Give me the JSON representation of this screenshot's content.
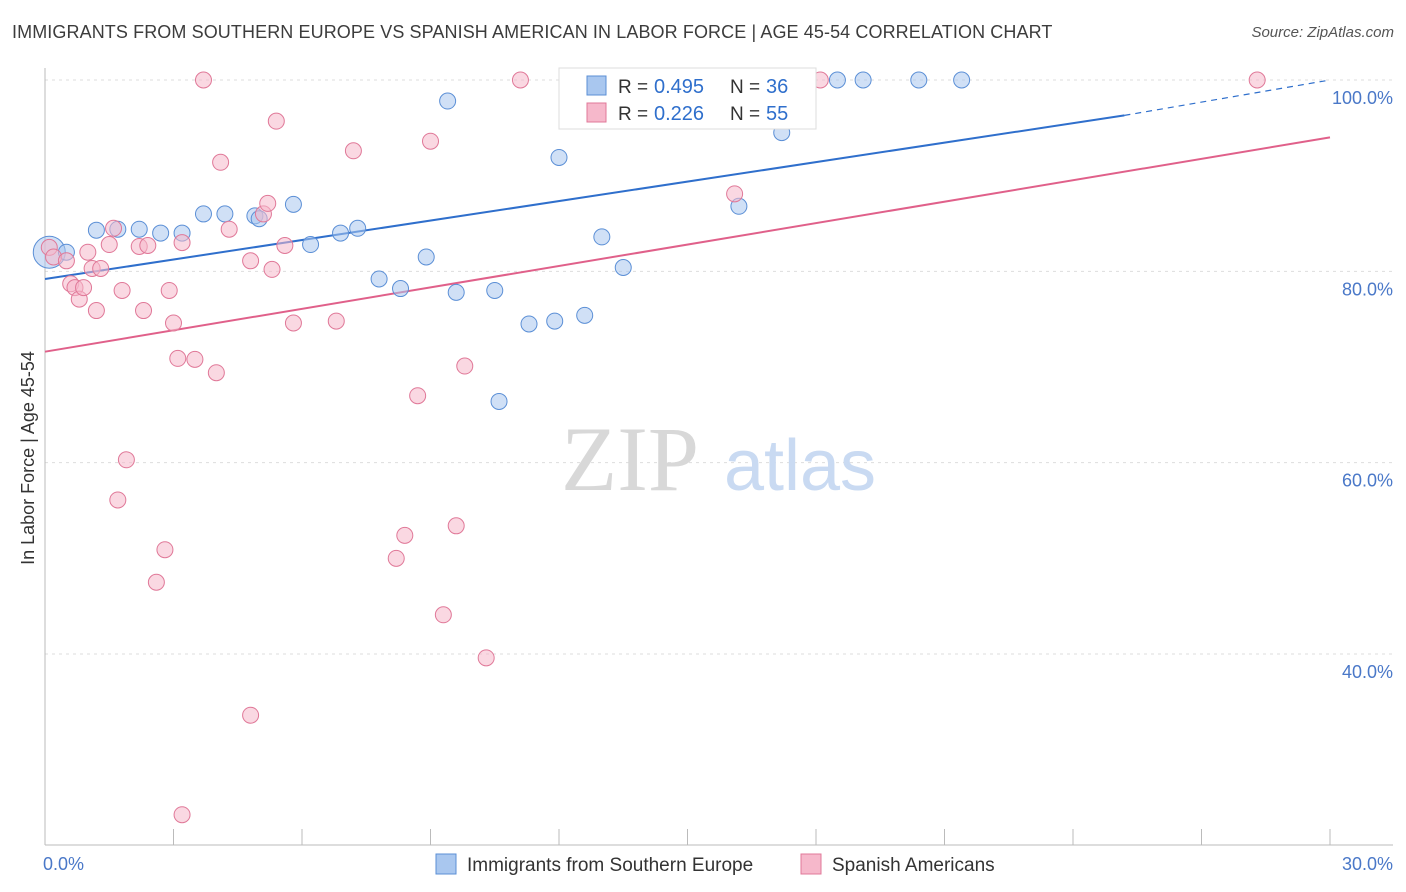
{
  "title": "IMMIGRANTS FROM SOUTHERN EUROPE VS SPANISH AMERICAN IN LABOR FORCE | AGE 45-54 CORRELATION CHART",
  "source": "Source: ZipAtlas.com",
  "watermark": {
    "zip": "ZIP",
    "atlas": "atlas"
  },
  "legend_box": {
    "r_label": "R =",
    "n_label": "N =",
    "rows": [
      {
        "r": "0.495",
        "n": "36"
      },
      {
        "r": "0.226",
        "n": "55"
      }
    ]
  },
  "colors": {
    "blue_fill": "#a9c7ef",
    "blue_stroke": "#5b8fd6",
    "blue_line": "#2f6fcc",
    "pink_fill": "#f6b8cb",
    "pink_stroke": "#e07898",
    "pink_line": "#e0608a",
    "grid": "#dddddd",
    "tick_text": "#4a78c8"
  },
  "chart_data": {
    "type": "scatter",
    "xlabel": "",
    "ylabel": "In Labor Force | Age 45-54",
    "xlim": [
      0,
      30
    ],
    "ylim": [
      20,
      104
    ],
    "x_tick_labels": [
      {
        "value": 0,
        "label": "0.0%"
      },
      {
        "value": 30,
        "label": "30.0%"
      }
    ],
    "y_tick_labels": [
      {
        "value": 100,
        "label": "100.0%"
      },
      {
        "value": 80,
        "label": "80.0%"
      },
      {
        "value": 60,
        "label": "60.0%"
      },
      {
        "value": 40,
        "label": "40.0%"
      }
    ],
    "grid": true,
    "legend_placement": "top-center and bottom",
    "series": [
      {
        "name": "Immigrants from Southern Europe",
        "color": "blue",
        "r": 0.495,
        "n": 36,
        "trend": {
          "x0": 0,
          "y0": 79.2,
          "x1": 25.2,
          "y1": 96.3,
          "dash_x1": 30,
          "dash_y1": 100.0
        },
        "points": [
          [
            0.1,
            82.0
          ],
          [
            1.2,
            84.3
          ],
          [
            1.7,
            84.4
          ],
          [
            2.2,
            84.4
          ],
          [
            2.7,
            84.0
          ],
          [
            3.2,
            84.0
          ],
          [
            3.7,
            86.0
          ],
          [
            4.2,
            86.0
          ],
          [
            4.9,
            85.8
          ],
          [
            5.0,
            85.5
          ],
          [
            5.8,
            87.0
          ],
          [
            6.2,
            82.8
          ],
          [
            6.9,
            84.0
          ],
          [
            7.3,
            84.5
          ],
          [
            7.8,
            79.2
          ],
          [
            8.3,
            78.2
          ],
          [
            8.9,
            81.5
          ],
          [
            9.4,
            97.8
          ],
          [
            9.6,
            77.8
          ],
          [
            10.5,
            78.0
          ],
          [
            10.6,
            66.4
          ],
          [
            11.3,
            74.5
          ],
          [
            11.9,
            74.8
          ],
          [
            12.0,
            91.9
          ],
          [
            12.6,
            75.4
          ],
          [
            13.0,
            83.6
          ],
          [
            13.5,
            80.4
          ],
          [
            14.1,
            100.0
          ],
          [
            15.0,
            100.0
          ],
          [
            16.2,
            86.8
          ],
          [
            17.2,
            94.5
          ],
          [
            18.5,
            100.0
          ],
          [
            19.1,
            100.0
          ],
          [
            20.4,
            100.0
          ],
          [
            21.4,
            100.0
          ],
          [
            0.5,
            82.0
          ]
        ]
      },
      {
        "name": "Spanish Americans",
        "color": "pink",
        "r": 0.226,
        "n": 55,
        "trend": {
          "x0": 0,
          "y0": 71.6,
          "x1": 30,
          "y1": 94.0
        },
        "points": [
          [
            0.1,
            82.5
          ],
          [
            0.2,
            81.5
          ],
          [
            0.5,
            81.1
          ],
          [
            0.6,
            78.7
          ],
          [
            0.7,
            78.3
          ],
          [
            0.8,
            77.1
          ],
          [
            0.9,
            78.3
          ],
          [
            1.0,
            82.0
          ],
          [
            1.1,
            80.3
          ],
          [
            1.2,
            75.9
          ],
          [
            1.3,
            80.3
          ],
          [
            1.5,
            82.8
          ],
          [
            1.6,
            84.5
          ],
          [
            1.8,
            78.0
          ],
          [
            2.2,
            82.6
          ],
          [
            2.3,
            75.9
          ],
          [
            2.4,
            82.7
          ],
          [
            2.9,
            78.0
          ],
          [
            3.0,
            74.6
          ],
          [
            3.1,
            70.9
          ],
          [
            3.2,
            83.0
          ],
          [
            3.5,
            70.8
          ],
          [
            3.7,
            100.0
          ],
          [
            4.0,
            69.4
          ],
          [
            4.1,
            91.4
          ],
          [
            4.3,
            84.4
          ],
          [
            4.8,
            81.1
          ],
          [
            5.1,
            86.0
          ],
          [
            5.2,
            87.1
          ],
          [
            5.3,
            80.2
          ],
          [
            5.4,
            95.7
          ],
          [
            5.6,
            82.7
          ],
          [
            5.8,
            74.6
          ],
          [
            6.8,
            74.8
          ],
          [
            7.2,
            92.6
          ],
          [
            8.2,
            50.0
          ],
          [
            8.4,
            52.4
          ],
          [
            8.7,
            67.0
          ],
          [
            9.0,
            93.6
          ],
          [
            9.3,
            44.1
          ],
          [
            9.6,
            53.4
          ],
          [
            9.8,
            70.1
          ],
          [
            10.3,
            39.6
          ],
          [
            11.1,
            100.0
          ],
          [
            15.2,
            100.0
          ],
          [
            16.1,
            88.1
          ],
          [
            18.1,
            100.0
          ],
          [
            28.3,
            100.0
          ],
          [
            1.9,
            60.3
          ],
          [
            1.7,
            56.1
          ],
          [
            2.8,
            50.9
          ],
          [
            2.6,
            47.5
          ],
          [
            4.8,
            33.6
          ],
          [
            3.2,
            23.2
          ],
          [
            15.5,
            100.0
          ]
        ]
      }
    ]
  }
}
